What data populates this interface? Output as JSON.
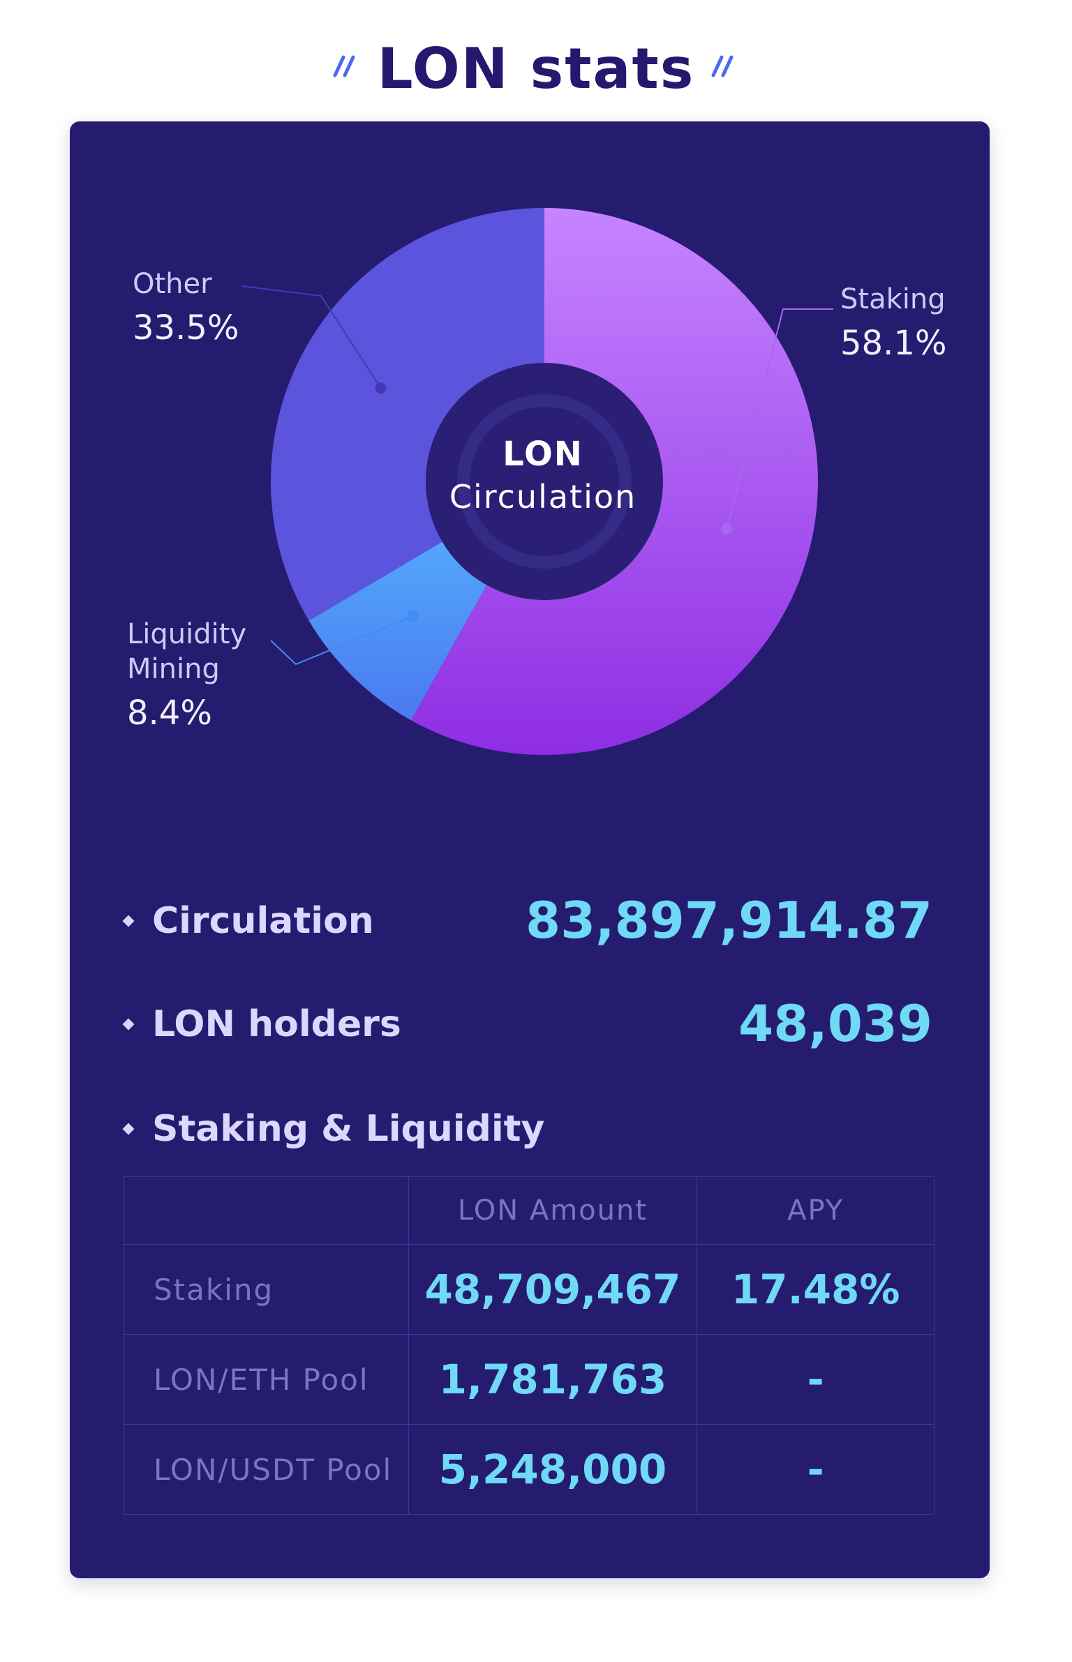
{
  "page": {
    "title": "LON stats"
  },
  "chart_data": {
    "type": "pie",
    "title": "LON Circulation",
    "center_label_line1": "LON",
    "center_label_line2": "Circulation",
    "slices": [
      {
        "label": "Staking",
        "value": 58.1,
        "value_label": "58.1%",
        "color_start": "#c684ff",
        "color_end": "#8e2ee3"
      },
      {
        "label": "Liquidity Mining",
        "value": 8.4,
        "value_label": "8.4%",
        "color_start": "#56b7ff",
        "color_end": "#4a79f0"
      },
      {
        "label": "Other",
        "value": 33.5,
        "value_label": "33.5%",
        "color_start": "#5c54dc",
        "color_end": "#5c54dc"
      }
    ]
  },
  "stats": {
    "circulation": {
      "label": "Circulation",
      "value": "83,897,914.87"
    },
    "holders": {
      "label": "LON holders",
      "value": "48,039"
    },
    "staking_liquidity": {
      "label": "Staking & Liquidity"
    }
  },
  "table": {
    "headers": [
      "",
      "LON Amount",
      "APY"
    ],
    "rows": [
      {
        "name": "Staking",
        "amount": "48,709,467",
        "apy": "17.48%"
      },
      {
        "name": "LON/ETH Pool",
        "amount": "1,781,763",
        "apy": "-"
      },
      {
        "name": "LON/USDT Pool",
        "amount": "5,248,000",
        "apy": "-"
      }
    ]
  },
  "colors": {
    "card_background": "#251c70",
    "value_accent": "#6fd9f6",
    "title": "#24196e"
  }
}
